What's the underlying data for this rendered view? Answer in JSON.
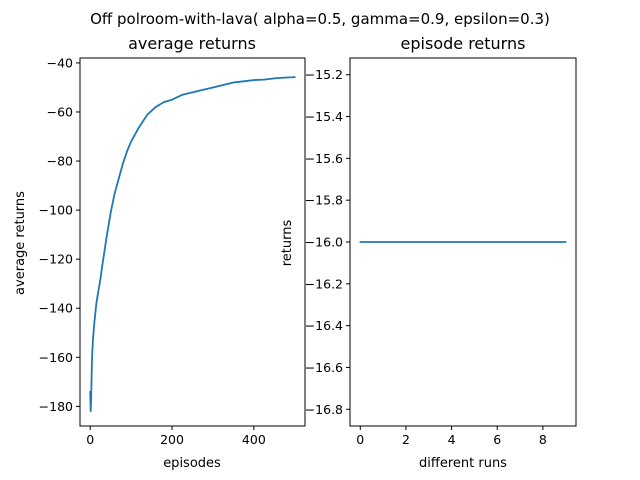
{
  "figure": {
    "suptitle": "Off polroom-with-lava( alpha=0.5, gamma=0.9, epsilon=0.3)"
  },
  "chart_data": [
    {
      "type": "line",
      "title": "average returns",
      "xlabel": "episodes",
      "ylabel": "average returns",
      "xlim": [
        -25,
        525
      ],
      "ylim": [
        -188,
        -38
      ],
      "x_ticks": [
        0,
        200,
        400
      ],
      "x_tick_labels": [
        "0",
        "200",
        "400"
      ],
      "y_ticks": [
        -180,
        -160,
        -140,
        -120,
        -100,
        -80,
        -60,
        -40
      ],
      "y_tick_labels": [
        "−180",
        "−160",
        "−140",
        "−120",
        "−100",
        "−80",
        "−60",
        "−40"
      ],
      "grid": false,
      "series": [
        {
          "color": "#1f77b4",
          "x": [
            0,
            1,
            2,
            3,
            4,
            5,
            7,
            10,
            15,
            20,
            25,
            30,
            40,
            50,
            60,
            70,
            80,
            90,
            100,
            120,
            140,
            160,
            180,
            200,
            225,
            250,
            275,
            300,
            325,
            350,
            375,
            400,
            425,
            450,
            475,
            500
          ],
          "y": [
            -174,
            -182,
            -178,
            -171,
            -163,
            -158,
            -152,
            -146,
            -138,
            -133,
            -128,
            -122,
            -111,
            -101,
            -93,
            -87,
            -81,
            -76,
            -72,
            -66,
            -61,
            -58,
            -56,
            -55,
            -53,
            -52,
            -51,
            -50,
            -49,
            -48,
            -47.5,
            -47,
            -46.8,
            -46.3,
            -46,
            -45.8
          ]
        }
      ]
    },
    {
      "type": "line",
      "title": "episode returns",
      "xlabel": "different runs",
      "ylabel": "returns",
      "xlim": [
        -0.45,
        9.45
      ],
      "ylim": [
        -16.88,
        -15.12
      ],
      "x_ticks": [
        0,
        2,
        4,
        6,
        8
      ],
      "x_tick_labels": [
        "0",
        "2",
        "4",
        "6",
        "8"
      ],
      "y_ticks": [
        -16.8,
        -16.6,
        -16.4,
        -16.2,
        -16.0,
        -15.8,
        -15.6,
        -15.4,
        -15.2
      ],
      "y_tick_labels": [
        "−16.8",
        "−16.6",
        "−16.4",
        "−16.2",
        "−16.0",
        "−15.8",
        "−15.6",
        "−15.4",
        "−15.2"
      ],
      "grid": false,
      "series": [
        {
          "color": "#1f77b4",
          "x": [
            0,
            1,
            2,
            3,
            4,
            5,
            6,
            7,
            8,
            9
          ],
          "y": [
            -16,
            -16,
            -16,
            -16,
            -16,
            -16,
            -16,
            -16,
            -16,
            -16
          ]
        }
      ]
    }
  ]
}
